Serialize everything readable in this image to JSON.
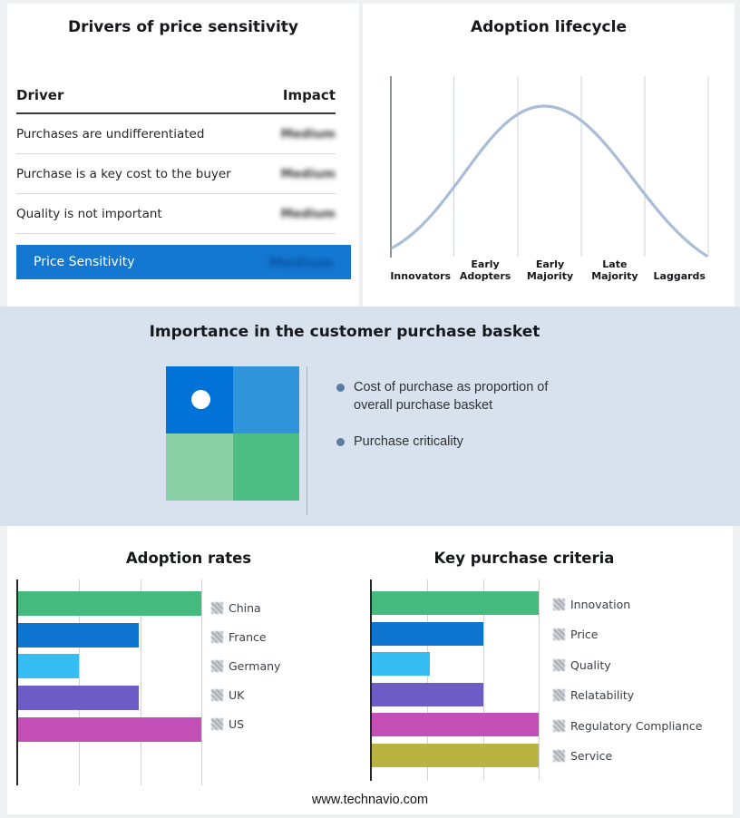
{
  "page": {
    "footer": "www.technavio.com"
  },
  "colors": {
    "accent_blue": "#1478d2",
    "summary_value_blue": "#0a55a4",
    "band_background": "#d8e2ee",
    "curve": "#a9bdd8"
  },
  "price_sensitivity": {
    "title": "Drivers of price sensitivity",
    "columns": {
      "driver": "Driver",
      "impact": "Impact"
    },
    "rows": [
      {
        "driver": "Purchases are undifferentiated",
        "impact": "Medium"
      },
      {
        "driver": "Purchase is a key cost to the buyer",
        "impact": "Medium"
      },
      {
        "driver": "Quality is not important",
        "impact": "Medium"
      }
    ],
    "summary": {
      "label": "Price Sensitivity",
      "impact": "Medium"
    }
  },
  "purchase_basket": {
    "title": "Importance in the customer purchase basket",
    "bullets": [
      "Cost of purchase as proportion of overall purchase basket",
      "Purchase criticality"
    ],
    "quadrant_colors": [
      "#0072d8",
      "#3094da",
      "#8cd1a5",
      "#4cbd83"
    ]
  },
  "chart_data": [
    {
      "id": "adoption-lifecycle",
      "type": "line",
      "title": "Adoption lifecycle",
      "curve": "bell",
      "categories": [
        "Innovators",
        "Early Adopters",
        "Early Majority",
        "Late Majority",
        "Laggards"
      ],
      "values": [
        8,
        55,
        100,
        55,
        8
      ],
      "ylim": [
        0,
        100
      ],
      "grid": true,
      "xlabel": "",
      "ylabel": ""
    },
    {
      "id": "adoption-rates",
      "type": "bar",
      "orientation": "horizontal",
      "title": "Adoption rates",
      "categories": [
        "China",
        "France",
        "Germany",
        "UK",
        "US"
      ],
      "values": [
        100,
        66,
        33,
        66,
        100
      ],
      "colors": [
        "#45ba7e",
        "#0e76d1",
        "#35bdf4",
        "#6d5bc6",
        "#c44fb6"
      ],
      "xlim": [
        0,
        100
      ],
      "grid": true,
      "legend_position": "right"
    },
    {
      "id": "key-purchase-criteria",
      "type": "bar",
      "orientation": "horizontal",
      "title": "Key purchase criteria",
      "categories": [
        "Innovation",
        "Price",
        "Quality",
        "Relatability",
        "Regulatory Compliance",
        "Service"
      ],
      "values": [
        100,
        67,
        35,
        67,
        100,
        100
      ],
      "colors": [
        "#45ba7e",
        "#0e76d1",
        "#35bdf4",
        "#6d5bc6",
        "#c44fb6",
        "#b9b442"
      ],
      "xlim": [
        0,
        100
      ],
      "grid": true,
      "legend_position": "right"
    }
  ]
}
